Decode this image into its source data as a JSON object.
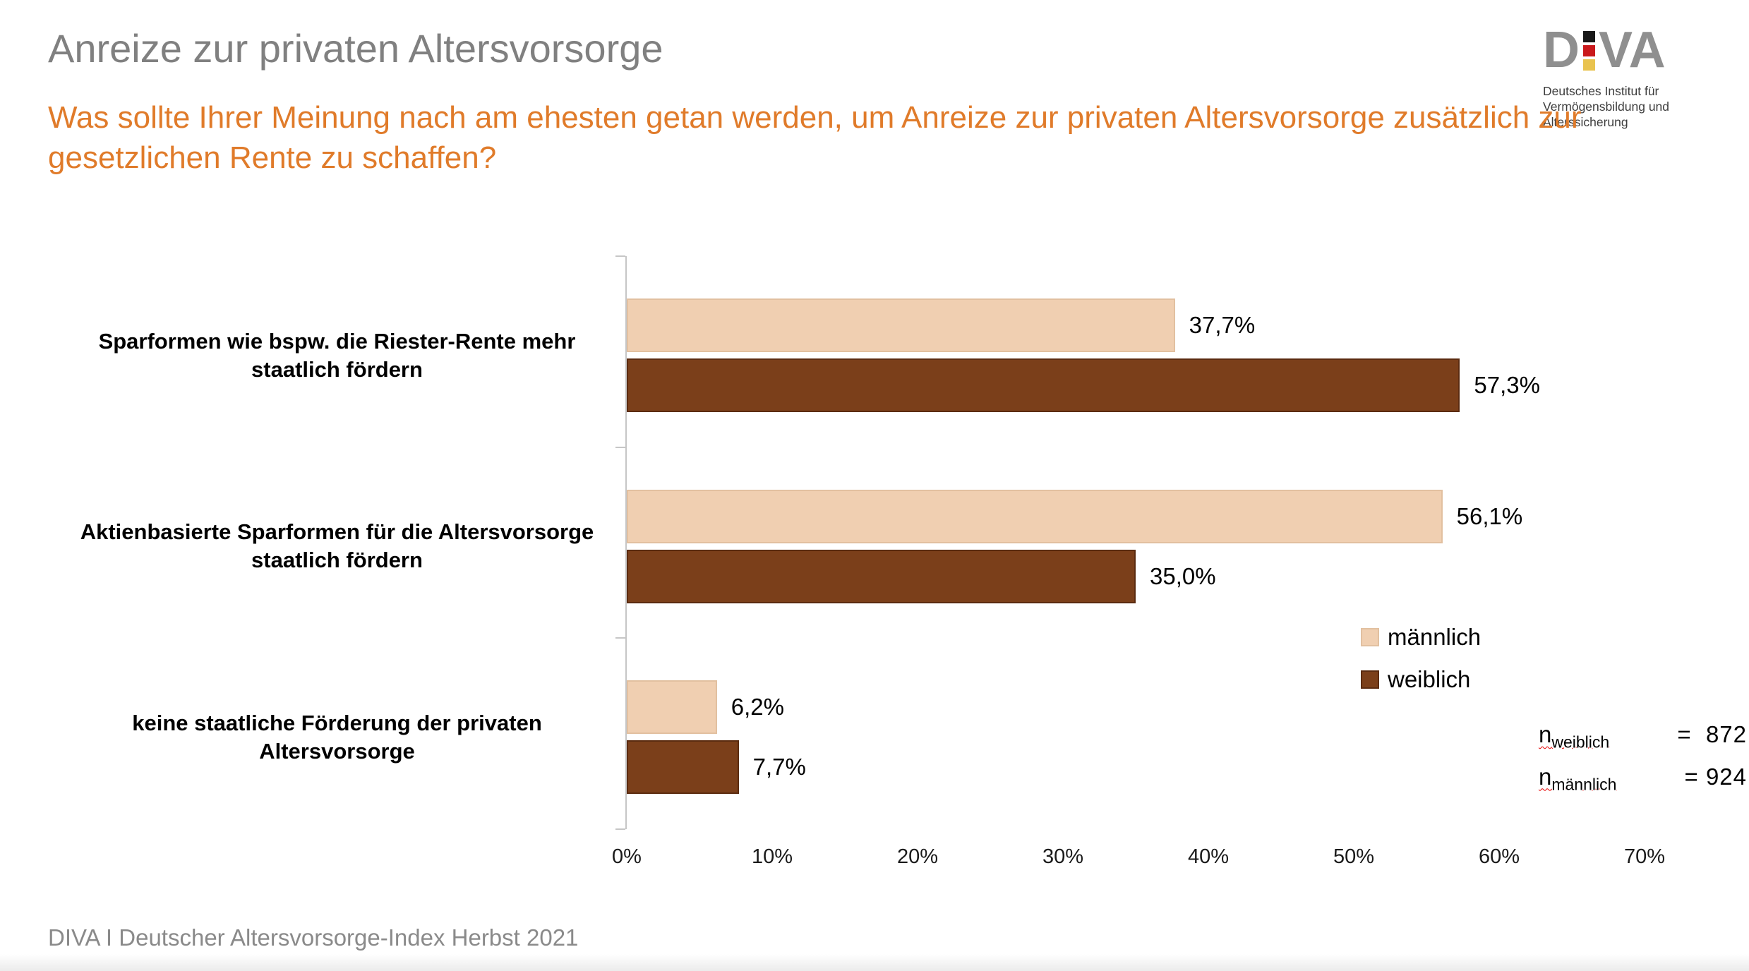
{
  "header": {
    "title": "Anreize zur privaten Altersvorsorge",
    "title_color": "#808080",
    "question": "Was sollte Ihrer Meinung nach am ehesten getan werden, um Anreize zur privaten Altersvorsorge zusätzlich zur gesetzlichen Rente zu schaffen?",
    "question_color": "#e07b2a"
  },
  "logo": {
    "wordmark_left": "D",
    "wordmark_right": "VA",
    "flag_colors": [
      "#1a1a1a",
      "#c9191c",
      "#e9c34f"
    ],
    "subtitle": "Deutsches Institut für Vermögensbildung und Alterssicherung"
  },
  "chart_data": {
    "type": "bar",
    "orientation": "horizontal",
    "title": "",
    "xlabel": "",
    "ylabel": "",
    "xlim": [
      0,
      70
    ],
    "grid": false,
    "legend_position": "right",
    "categories": [
      "Sparformen wie bspw. die Riester-Rente mehr staatlich fördern",
      "Aktienbasierte Sparformen für die Altersvorsorge staatlich fördern",
      "keine staatliche Förderung der privaten Altersvorsorge"
    ],
    "series": [
      {
        "name": "männlich",
        "values": [
          37.7,
          56.1,
          6.2
        ],
        "labels": [
          "37,7%",
          "56,1%",
          "6,2%"
        ],
        "fill": "#f0cfb1",
        "border": "#e2c0a0"
      },
      {
        "name": "weiblich",
        "values": [
          57.3,
          35.0,
          7.7
        ],
        "labels": [
          "57,3%",
          "35,0%",
          "7,7%"
        ],
        "fill": "#7b3f1a",
        "border": "#5b2b10"
      }
    ],
    "x_ticks": [
      "0%",
      "10%",
      "20%",
      "30%",
      "40%",
      "50%",
      "60%",
      "70%"
    ]
  },
  "annotations": {
    "n_weiblich": {
      "base": "n",
      "sub": "weiblich",
      "eq": "=",
      "value": "872"
    },
    "n_maennlich": {
      "base": "n",
      "sub": "männlich",
      "eq": "=",
      "value": "924"
    }
  },
  "footer": {
    "source": "DIVA I Deutscher Altersvorsorge-Index Herbst 2021"
  }
}
